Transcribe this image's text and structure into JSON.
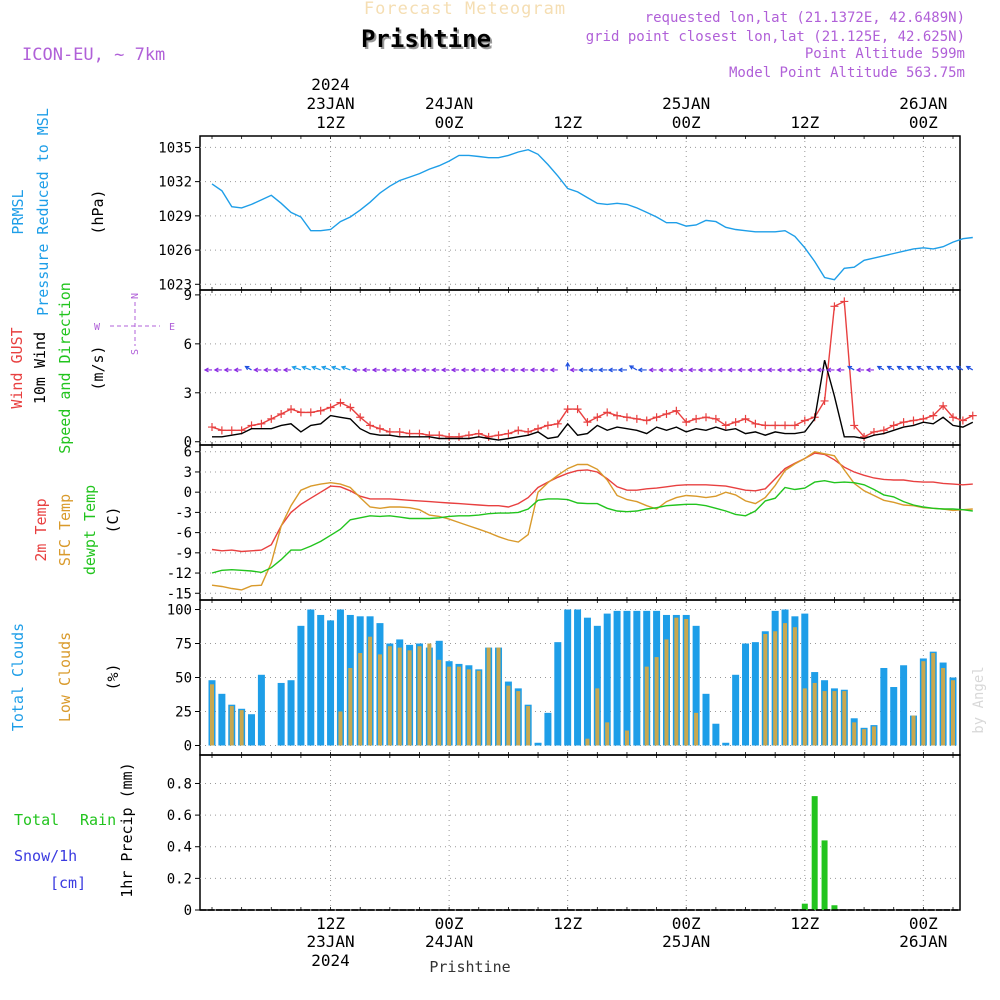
{
  "header": {
    "subtitle": "Forecast Meteogram",
    "station": "Prishtine",
    "model": "ICON-EU, ~ 7km",
    "requested": "requested lon,lat (21.1372E, 42.6489N)",
    "gridpoint": "grid point closest lon,lat (21.125E, 42.625N)",
    "point_alt": "Point Altitude 599m",
    "model_alt": "Model Point Altitude 563.75m",
    "footer_station": "Prishtine",
    "credit": "by Angel"
  },
  "colors": {
    "pressure": "#1e9ee8",
    "gust": "#e84040",
    "wind": "#000000",
    "arrows_purple": "#8a2be2",
    "arrows_blue": "#2050e0",
    "temp2m": "#e84040",
    "sfc": "#d99a2b",
    "dew": "#22c41e",
    "total_cloud": "#1e9ee8",
    "low_cloud": "#c8a850",
    "rain": "#22c41e",
    "snow": "#3a3ae0",
    "purple_text": "#b060d8"
  },
  "time_axis": {
    "top_year": "2024",
    "ticks": [
      {
        "h": 12,
        "hour": "12Z",
        "date": "23JAN",
        "year": "2024"
      },
      {
        "h": 24,
        "hour": "00Z",
        "date": "24JAN",
        "year": ""
      },
      {
        "h": 36,
        "hour": "12Z",
        "date": "",
        "year": ""
      },
      {
        "h": 48,
        "hour": "00Z",
        "date": "25JAN",
        "year": ""
      },
      {
        "h": 60,
        "hour": "12Z",
        "date": "",
        "year": ""
      },
      {
        "h": 72,
        "hour": "00Z",
        "date": "26JAN",
        "year": ""
      }
    ],
    "bottom_ticks": [
      {
        "h": 12,
        "hour": "12Z",
        "date": "23JAN",
        "year": "2024"
      },
      {
        "h": 24,
        "hour": "00Z",
        "date": "24JAN",
        "year": ""
      },
      {
        "h": 36,
        "hour": "12Z",
        "date": "",
        "year": ""
      },
      {
        "h": 48,
        "hour": "00Z",
        "date": "25JAN",
        "year": ""
      },
      {
        "h": 60,
        "hour": "12Z",
        "date": "",
        "year": ""
      },
      {
        "h": 72,
        "hour": "00Z",
        "date": "26JAN",
        "year": ""
      }
    ]
  },
  "panel_labels": {
    "pressure": [
      "PRMSL",
      "Pressure Reduced to MSL",
      "(hPa)"
    ],
    "wind": [
      "Wind GUST",
      "10m Wind",
      "Speed and Direction",
      "(m/s)"
    ],
    "compass": {
      "n": "N",
      "s": "S",
      "e": "E",
      "w": "W"
    },
    "temp": [
      "2m Temp",
      "SFC Temp",
      "dewpt Temp",
      "(C)"
    ],
    "cloud": [
      "Total Clouds",
      "Low Clouds",
      "(%)"
    ],
    "precip": [
      "Total",
      "Rain",
      "Snow/1h",
      "[cm]",
      "1hr Precip (mm)"
    ]
  },
  "chart_data": [
    {
      "type": "line",
      "title": "PRMSL Pressure Reduced to MSL",
      "ylabel": "(hPa)",
      "x_range_hours": [
        0,
        77
      ],
      "ylim": [
        1022.5,
        1036
      ],
      "yticks": [
        1023,
        1026,
        1029,
        1032,
        1035
      ],
      "x": [
        0,
        1,
        2,
        3,
        4,
        5,
        6,
        7,
        8,
        9,
        10,
        11,
        12,
        13,
        14,
        15,
        16,
        17,
        18,
        19,
        20,
        21,
        22,
        23,
        24,
        25,
        26,
        27,
        28,
        29,
        30,
        31,
        32,
        33,
        34,
        35,
        36,
        37,
        38,
        39,
        40,
        41,
        42,
        43,
        44,
        45,
        46,
        47,
        48,
        49,
        50,
        51,
        52,
        53,
        54,
        55,
        56,
        57,
        58,
        59,
        60,
        61,
        62,
        63,
        64,
        65,
        66,
        67,
        68,
        69,
        70,
        71,
        72,
        73,
        74,
        75,
        76,
        77
      ],
      "series": [
        {
          "name": "PRMSL",
          "values": [
            1031.8,
            1031.2,
            1029.8,
            1029.7,
            1030.0,
            1030.4,
            1030.8,
            1030.1,
            1029.3,
            1028.9,
            1027.7,
            1027.7,
            1027.8,
            1028.5,
            1028.9,
            1029.5,
            1030.2,
            1031.0,
            1031.6,
            1032.1,
            1032.4,
            1032.7,
            1033.1,
            1033.4,
            1033.8,
            1034.3,
            1034.3,
            1034.2,
            1034.1,
            1034.1,
            1034.3,
            1034.6,
            1034.8,
            1034.4,
            1033.5,
            1032.5,
            1031.4,
            1031.1,
            1030.6,
            1030.1,
            1030.0,
            1030.1,
            1030.0,
            1029.7,
            1029.3,
            1028.9,
            1028.4,
            1028.4,
            1028.1,
            1028.2,
            1028.6,
            1028.5,
            1028.0,
            1027.8,
            1027.7,
            1027.6,
            1027.6,
            1027.6,
            1027.7,
            1027.2,
            1026.2,
            1025.0,
            1023.6,
            1023.4,
            1024.4,
            1024.5,
            1025.1,
            1025.3,
            1025.5,
            1025.7,
            1025.9,
            1026.1,
            1026.2,
            1026.1,
            1026.3,
            1026.7,
            1027.0,
            1027.1
          ]
        }
      ]
    },
    {
      "type": "line",
      "title": "Wind GUST / 10m Wind",
      "ylabel": "(m/s)",
      "x_range_hours": [
        0,
        77
      ],
      "ylim": [
        -0.2,
        9.3
      ],
      "yticks": [
        0,
        3,
        6,
        9
      ],
      "x": [
        0,
        1,
        2,
        3,
        4,
        5,
        6,
        7,
        8,
        9,
        10,
        11,
        12,
        13,
        14,
        15,
        16,
        17,
        18,
        19,
        20,
        21,
        22,
        23,
        24,
        25,
        26,
        27,
        28,
        29,
        30,
        31,
        32,
        33,
        34,
        35,
        36,
        37,
        38,
        39,
        40,
        41,
        42,
        43,
        44,
        45,
        46,
        47,
        48,
        49,
        50,
        51,
        52,
        53,
        54,
        55,
        56,
        57,
        58,
        59,
        60,
        61,
        62,
        63,
        64,
        65,
        66,
        67,
        68,
        69,
        70,
        71,
        72,
        73,
        74,
        75,
        76,
        77
      ],
      "series": [
        {
          "name": "Wind GUST",
          "values": [
            0.9,
            0.7,
            0.7,
            0.7,
            1.0,
            1.1,
            1.4,
            1.7,
            2.0,
            1.8,
            1.8,
            1.9,
            2.1,
            2.4,
            2.1,
            1.5,
            1.0,
            0.8,
            0.6,
            0.6,
            0.5,
            0.5,
            0.4,
            0.4,
            0.3,
            0.3,
            0.4,
            0.5,
            0.3,
            0.4,
            0.5,
            0.7,
            0.6,
            0.8,
            1.0,
            1.1,
            2.0,
            2.0,
            1.2,
            1.5,
            1.8,
            1.6,
            1.5,
            1.4,
            1.3,
            1.5,
            1.7,
            1.9,
            1.2,
            1.4,
            1.5,
            1.4,
            1.0,
            1.2,
            1.4,
            1.1,
            1.0,
            1.0,
            1.0,
            1.0,
            1.3,
            1.5,
            2.5,
            8.3,
            8.6,
            1.0,
            0.3,
            0.6,
            0.7,
            1.0,
            1.2,
            1.3,
            1.4,
            1.6,
            2.2,
            1.5,
            1.3,
            1.6
          ]
        },
        {
          "name": "10m Wind",
          "values": [
            0.3,
            0.3,
            0.4,
            0.5,
            0.8,
            0.8,
            0.8,
            1.0,
            1.1,
            0.6,
            1.0,
            1.1,
            1.6,
            1.5,
            1.4,
            0.8,
            0.5,
            0.4,
            0.4,
            0.3,
            0.3,
            0.3,
            0.3,
            0.2,
            0.2,
            0.2,
            0.2,
            0.3,
            0.2,
            0.1,
            0.2,
            0.3,
            0.4,
            0.6,
            0.2,
            0.3,
            1.1,
            0.4,
            0.5,
            1.0,
            0.7,
            0.9,
            0.8,
            0.7,
            0.5,
            0.9,
            0.7,
            0.9,
            0.6,
            0.8,
            0.7,
            0.9,
            0.7,
            0.8,
            0.5,
            0.6,
            0.4,
            0.6,
            0.5,
            0.5,
            0.6,
            1.4,
            5.0,
            2.8,
            0.3,
            0.3,
            0.2,
            0.4,
            0.5,
            0.7,
            0.9,
            1.0,
            1.2,
            1.1,
            1.5,
            1.0,
            0.9,
            1.2
          ]
        }
      ]
    },
    {
      "type": "line",
      "title": "Temperatures",
      "ylabel": "(C)",
      "x_range_hours": [
        0,
        77
      ],
      "ylim": [
        -16,
        7
      ],
      "yticks": [
        -15,
        -12,
        -9,
        -6,
        -3,
        0,
        3,
        6
      ],
      "x": [
        0,
        1,
        2,
        3,
        4,
        5,
        6,
        7,
        8,
        9,
        10,
        11,
        12,
        13,
        14,
        15,
        16,
        17,
        18,
        19,
        20,
        21,
        22,
        23,
        24,
        25,
        26,
        27,
        28,
        29,
        30,
        31,
        32,
        33,
        34,
        35,
        36,
        37,
        38,
        39,
        40,
        41,
        42,
        43,
        44,
        45,
        46,
        47,
        48,
        49,
        50,
        51,
        52,
        53,
        54,
        55,
        56,
        57,
        58,
        59,
        60,
        61,
        62,
        63,
        64,
        65,
        66,
        67,
        68,
        69,
        70,
        71,
        72,
        73,
        74,
        75,
        76,
        77
      ],
      "series": [
        {
          "name": "2m Temp",
          "values": [
            -8.5,
            -8.7,
            -8.6,
            -8.8,
            -8.7,
            -8.6,
            -7.8,
            -5.0,
            -3.0,
            -1.8,
            -0.9,
            0.0,
            0.9,
            0.8,
            0.2,
            -0.6,
            -1.0,
            -1.0,
            -1.0,
            -1.1,
            -1.2,
            -1.3,
            -1.4,
            -1.5,
            -1.6,
            -1.7,
            -1.8,
            -1.9,
            -2.0,
            -2.0,
            -2.2,
            -1.7,
            -0.8,
            0.7,
            1.5,
            2.2,
            2.8,
            3.2,
            3.3,
            3.0,
            2.0,
            0.8,
            0.3,
            0.3,
            0.5,
            0.6,
            0.8,
            1.0,
            1.1,
            1.1,
            1.1,
            1.0,
            0.9,
            0.6,
            0.3,
            0.2,
            0.5,
            2.0,
            3.5,
            4.3,
            5.0,
            5.8,
            5.6,
            4.8,
            3.7,
            3.0,
            2.5,
            2.1,
            1.9,
            1.8,
            1.8,
            1.6,
            1.5,
            1.5,
            1.3,
            1.2,
            1.1,
            1.2
          ]
        },
        {
          "name": "SFC Temp",
          "values": [
            -13.8,
            -14.0,
            -14.3,
            -14.5,
            -13.9,
            -13.8,
            -10.5,
            -5.0,
            -2.0,
            0.3,
            0.9,
            1.2,
            1.4,
            1.2,
            0.7,
            -0.8,
            -2.2,
            -2.4,
            -2.2,
            -2.2,
            -2.3,
            -2.6,
            -3.4,
            -3.6,
            -4.0,
            -4.5,
            -5.0,
            -5.5,
            -6.0,
            -6.6,
            -7.1,
            -7.4,
            -6.3,
            0.0,
            1.4,
            2.5,
            3.5,
            4.1,
            4.1,
            3.4,
            1.8,
            -0.5,
            -1.1,
            -1.4,
            -2.0,
            -2.5,
            -1.4,
            -0.8,
            -0.5,
            -0.6,
            -0.8,
            -0.6,
            0.0,
            -0.4,
            -1.3,
            -1.7,
            -0.8,
            1.0,
            3.2,
            4.2,
            5.0,
            6.0,
            5.7,
            5.4,
            3.3,
            1.3,
            0.2,
            -0.5,
            -1.2,
            -1.5,
            -1.9,
            -2.0,
            -2.3,
            -2.4,
            -2.5,
            -2.7,
            -2.6,
            -2.5
          ]
        },
        {
          "name": "dewpt Temp",
          "values": [
            -12.0,
            -11.6,
            -11.5,
            -11.6,
            -11.7,
            -11.9,
            -11.2,
            -10.0,
            -8.6,
            -8.6,
            -8.0,
            -7.3,
            -6.4,
            -5.5,
            -4.1,
            -3.8,
            -3.5,
            -3.6,
            -3.5,
            -3.7,
            -3.9,
            -3.9,
            -3.9,
            -3.8,
            -3.6,
            -3.5,
            -3.5,
            -3.4,
            -3.2,
            -3.1,
            -3.1,
            -3.0,
            -2.5,
            -1.2,
            -1.0,
            -1.0,
            -1.1,
            -1.6,
            -1.7,
            -1.7,
            -2.4,
            -2.8,
            -2.9,
            -2.8,
            -2.5,
            -2.3,
            -2.0,
            -1.9,
            -1.8,
            -1.8,
            -2.0,
            -2.4,
            -2.8,
            -3.3,
            -3.5,
            -2.8,
            -1.3,
            -0.9,
            0.7,
            0.4,
            0.6,
            1.5,
            1.7,
            1.4,
            1.5,
            1.4,
            1.1,
            0.4,
            -0.4,
            -0.7,
            -1.4,
            -1.9,
            -2.2,
            -2.4,
            -2.5,
            -2.5,
            -2.6,
            -2.8
          ]
        }
      ]
    },
    {
      "type": "bar",
      "title": "Clouds",
      "ylabel": "(%)",
      "x_range_hours": [
        0,
        77
      ],
      "ylim": [
        -7,
        107
      ],
      "yticks": [
        0,
        25,
        50,
        75,
        100
      ],
      "x": [
        0,
        1,
        2,
        3,
        4,
        5,
        6,
        7,
        8,
        9,
        10,
        11,
        12,
        13,
        14,
        15,
        16,
        17,
        18,
        19,
        20,
        21,
        22,
        23,
        24,
        25,
        26,
        27,
        28,
        29,
        30,
        31,
        32,
        33,
        34,
        35,
        36,
        37,
        38,
        39,
        40,
        41,
        42,
        43,
        44,
        45,
        46,
        47,
        48,
        49,
        50,
        51,
        52,
        53,
        54,
        55,
        56,
        57,
        58,
        59,
        60,
        61,
        62,
        63,
        64,
        65,
        66,
        67,
        68,
        69,
        70,
        71,
        72,
        73,
        74,
        75,
        76,
        77
      ],
      "series": [
        {
          "name": "Total Clouds",
          "values": [
            48,
            38,
            30,
            27,
            23,
            52,
            0,
            46,
            48,
            88,
            100,
            96,
            92,
            100,
            96,
            95,
            95,
            90,
            75,
            78,
            74,
            75,
            72,
            77,
            62,
            60,
            59,
            56,
            72,
            72,
            47,
            42,
            30,
            2,
            24,
            76,
            100,
            100,
            94,
            88,
            97,
            99,
            99,
            99,
            99,
            99,
            96,
            96,
            96,
            88,
            38,
            16,
            2,
            52,
            75,
            76,
            84,
            99,
            100,
            95,
            97,
            54,
            48,
            42,
            41,
            20,
            13,
            15,
            57,
            43,
            59,
            22,
            64,
            69,
            61,
            50,
            0,
            0
          ]
        },
        {
          "name": "Low Clouds",
          "values": [
            45,
            0,
            29,
            26,
            0,
            0,
            0,
            0,
            0,
            0,
            0,
            0,
            0,
            25,
            57,
            68,
            80,
            67,
            73,
            72,
            70,
            73,
            75,
            63,
            58,
            58,
            56,
            55,
            72,
            72,
            44,
            40,
            29,
            0,
            0,
            0,
            0,
            0,
            5,
            42,
            17,
            0,
            11,
            0,
            58,
            65,
            78,
            94,
            93,
            24,
            0,
            0,
            0,
            0,
            0,
            0,
            82,
            84,
            90,
            87,
            42,
            46,
            40,
            40,
            40,
            17,
            12,
            14,
            0,
            0,
            0,
            22,
            62,
            68,
            57,
            48,
            0,
            0
          ]
        }
      ]
    },
    {
      "type": "bar",
      "title": "1hr Precip (mm)",
      "ylabel": "1hr Precip (mm)",
      "x_range_hours": [
        0,
        77
      ],
      "ylim": [
        0,
        0.98
      ],
      "yticks": [
        0,
        0.2,
        0.4,
        0.6,
        0.8
      ],
      "x": [
        60,
        61,
        62,
        63
      ],
      "series": [
        {
          "name": "Total Rain",
          "values": [
            0.04,
            0.72,
            0.44,
            0.03
          ]
        }
      ]
    }
  ]
}
